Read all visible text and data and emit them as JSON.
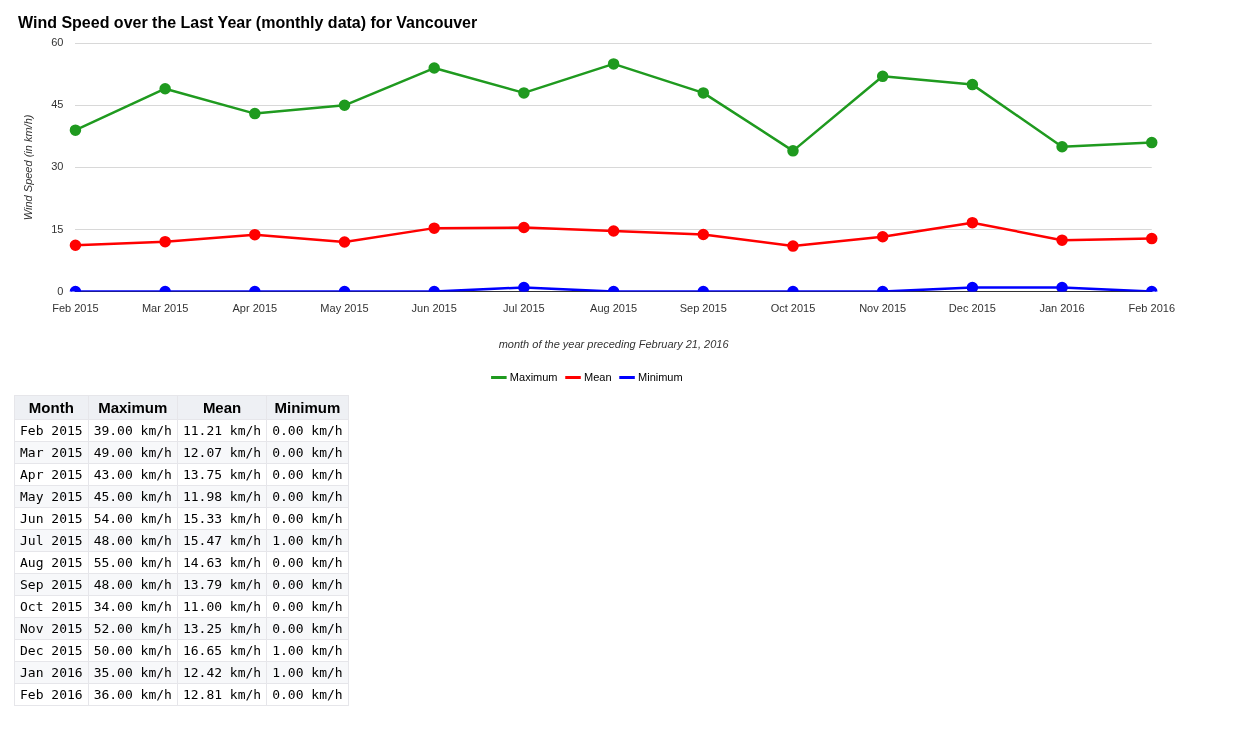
{
  "chart_data": [
    {
      "type": "line",
      "title": "Wind Speed over the Last Year (monthly data) for Vancouver",
      "xlabel": "month of the year preceding February 21, 2016",
      "ylabel": "Wind Speed (in km/h)",
      "categories": [
        "Feb 2015",
        "Mar 2015",
        "Apr 2015",
        "May 2015",
        "Jun 2015",
        "Jul 2015",
        "Aug 2015",
        "Sep 2015",
        "Oct 2015",
        "Nov 2015",
        "Dec 2015",
        "Jan 2016",
        "Feb 2016"
      ],
      "series": [
        {
          "name": "Maximum",
          "color": "#1f9a1f",
          "values": [
            39,
            49,
            43,
            45,
            54,
            48,
            55,
            48,
            34,
            52,
            50,
            35,
            36
          ]
        },
        {
          "name": "Mean",
          "color": "#ff0000",
          "values": [
            11.21,
            12.07,
            13.75,
            11.98,
            15.33,
            15.47,
            14.63,
            13.79,
            11.0,
            13.25,
            16.65,
            12.42,
            12.81
          ]
        },
        {
          "name": "Minimum",
          "color": "#0000ff",
          "values": [
            0,
            0,
            0,
            0,
            0,
            1,
            0,
            0,
            0,
            0,
            1,
            1,
            0
          ]
        }
      ],
      "ylim": [
        0,
        60
      ],
      "yticks": [
        0,
        15,
        30,
        45,
        60
      ],
      "grid": "y",
      "legend": "bottom",
      "marker": "circle",
      "line_style": "solid"
    },
    {
      "type": "other",
      "categories": [
        "Month",
        "Maximum",
        "Mean",
        "Minimum"
      ],
      "annotations": [
        "Feb 2015",
        "39.00 km/h",
        "11.21 km/h",
        "0.00 km/h",
        "Mar 2015",
        "49.00 km/h",
        "12.07 km/h",
        "0.00 km/h",
        "Apr 2015",
        "43.00 km/h",
        "13.75 km/h",
        "0.00 km/h",
        "May 2015",
        "45.00 km/h",
        "11.98 km/h",
        "0.00 km/h",
        "Jun 2015",
        "54.00 km/h",
        "15.33 km/h",
        "0.00 km/h",
        "Jul 2015",
        "48.00 km/h",
        "15.47 km/h",
        "1.00 km/h",
        "Aug 2015",
        "55.00 km/h",
        "14.63 km/h",
        "0.00 km/h",
        "Sep 2015",
        "48.00 km/h",
        "13.79 km/h",
        "0.00 km/h",
        "Oct 2015",
        "34.00 km/h",
        "11.00 km/h",
        "0.00 km/h",
        "Nov 2015",
        "52.00 km/h",
        "13.25 km/h",
        "0.00 km/h",
        "Dec 2015",
        "50.00 km/h",
        "16.65 km/h",
        "1.00 km/h",
        "Jan 2016",
        "35.00 km/h",
        "12.42 km/h",
        "1.00 km/h",
        "Feb 2016",
        "36.00 km/h",
        "12.81 km/h",
        "0.00 km/h"
      ]
    }
  ]
}
